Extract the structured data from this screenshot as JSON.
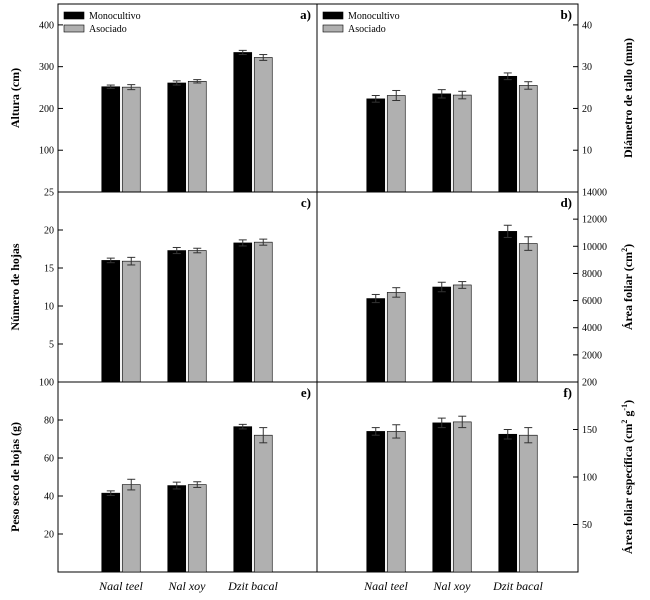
{
  "chart_data": [
    {
      "type": "bar",
      "panel": "a)",
      "ylabel": "Altura (cm)",
      "categories": [
        "Naal teel",
        "Nal xoy",
        "Dzit bacal"
      ],
      "series": [
        {
          "name": "Monocultivo",
          "color": "#000000",
          "values": [
            252,
            261,
            334
          ],
          "errors": [
            4,
            5,
            5
          ]
        },
        {
          "name": "Asociado",
          "color": "#b0b0b0",
          "values": [
            251,
            265,
            322
          ],
          "errors": [
            6,
            4,
            7
          ]
        }
      ],
      "ylim": [
        0,
        450
      ],
      "yticks": [
        100,
        200,
        300,
        400
      ],
      "legend": "top-left"
    },
    {
      "type": "bar",
      "panel": "b)",
      "ylabel": "Diámetro de tallo (mm)",
      "categories": [
        "Naal teel",
        "Nal xoy",
        "Dzit bacal"
      ],
      "series": [
        {
          "name": "Monocultivo",
          "color": "#000000",
          "values": [
            22.3,
            23.5,
            27.7
          ],
          "errors": [
            0.8,
            1.0,
            0.8
          ]
        },
        {
          "name": "Asociado",
          "color": "#b0b0b0",
          "values": [
            23.1,
            23.2,
            25.5
          ],
          "errors": [
            1.2,
            0.9,
            0.9
          ]
        }
      ],
      "ylim": [
        0,
        45
      ],
      "yticks": [
        10,
        20,
        30,
        40
      ],
      "legend": "top-left"
    },
    {
      "type": "bar",
      "panel": "c)",
      "ylabel": "Número de hojas",
      "categories": [
        "Naal teel",
        "Nal xoy",
        "Dzit bacal"
      ],
      "series": [
        {
          "name": "Monocultivo",
          "color": "#000000",
          "values": [
            16.0,
            17.3,
            18.3
          ],
          "errors": [
            0.3,
            0.4,
            0.4
          ]
        },
        {
          "name": "Asociado",
          "color": "#b0b0b0",
          "values": [
            15.9,
            17.3,
            18.4
          ],
          "errors": [
            0.5,
            0.3,
            0.4
          ]
        }
      ],
      "ylim": [
        0,
        25
      ],
      "yticks": [
        5,
        10,
        15,
        20,
        25
      ]
    },
    {
      "type": "bar",
      "panel": "d)",
      "ylabel": "Área foliar",
      "ylabel_unit": "cm",
      "ylabel_exp": "2",
      "categories": [
        "Naal teel",
        "Nal xoy",
        "Dzit bacal"
      ],
      "series": [
        {
          "name": "Monocultivo",
          "color": "#000000",
          "values": [
            6150,
            7000,
            11100
          ],
          "errors": [
            300,
            350,
            450
          ]
        },
        {
          "name": "Asociado",
          "color": "#b0b0b0",
          "values": [
            6600,
            7150,
            10200
          ],
          "errors": [
            350,
            250,
            500
          ]
        }
      ],
      "ylim": [
        0,
        14000
      ],
      "yticks": [
        2000,
        4000,
        6000,
        8000,
        10000,
        12000,
        14000
      ]
    },
    {
      "type": "bar",
      "panel": "e)",
      "ylabel": "Peso seco de hojas (g)",
      "categories": [
        "Naal teel",
        "Nal xoy",
        "Dzit bacal"
      ],
      "series": [
        {
          "name": "Monocultivo",
          "color": "#000000",
          "values": [
            41.5,
            45.5,
            76.5
          ],
          "errors": [
            1.2,
            1.8,
            1.2
          ]
        },
        {
          "name": "Asociado",
          "color": "#b0b0b0",
          "values": [
            46.0,
            46.0,
            72.0
          ],
          "errors": [
            2.8,
            1.5,
            4.0
          ]
        }
      ],
      "ylim": [
        0,
        100
      ],
      "yticks": [
        20,
        40,
        60,
        80,
        100
      ]
    },
    {
      "type": "bar",
      "panel": "f)",
      "ylabel": "Área foliar específica",
      "ylabel_unit": "cm",
      "ylabel_exp": "2",
      "ylabel_unit2": "g",
      "ylabel_exp2": "-1",
      "categories": [
        "Naal teel",
        "Nal xoy",
        "Dzit bacal"
      ],
      "series": [
        {
          "name": "Monocultivo",
          "color": "#000000",
          "values": [
            148,
            157,
            145
          ],
          "errors": [
            4,
            5,
            5
          ]
        },
        {
          "name": "Asociado",
          "color": "#b0b0b0",
          "values": [
            148,
            158,
            144
          ],
          "errors": [
            7,
            6,
            8
          ]
        }
      ],
      "ylim": [
        0,
        200
      ],
      "yticks": [
        50,
        100,
        150,
        200
      ]
    }
  ],
  "legend": {
    "label_mono": "Monocultivo",
    "label_asoc": "Asociado"
  },
  "x_labels": [
    "Naal teel",
    "Nal xoy",
    "Dzit bacal"
  ]
}
